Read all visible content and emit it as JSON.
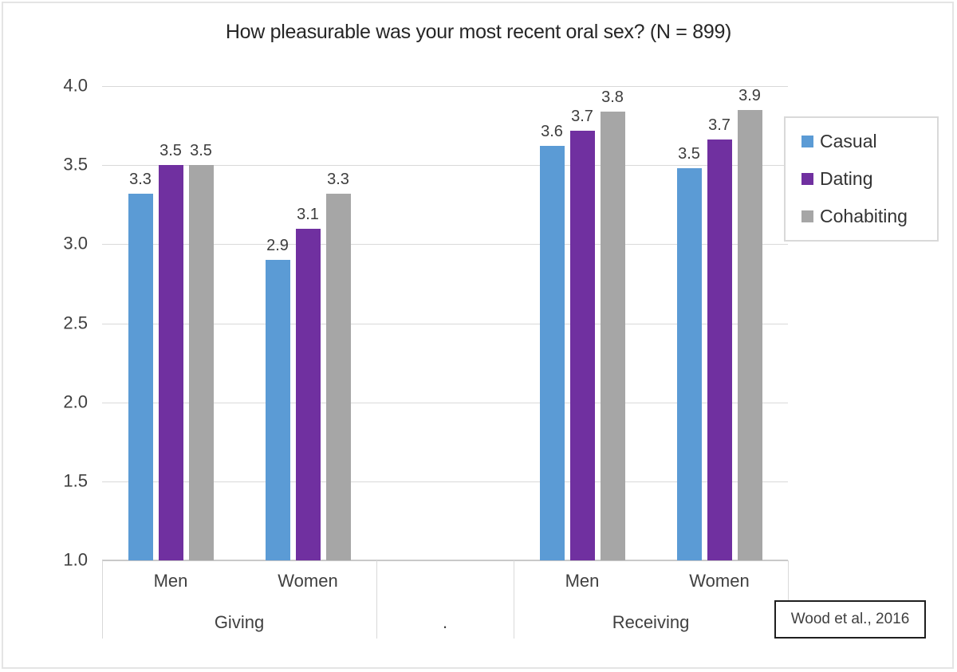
{
  "chart_data": {
    "type": "bar",
    "title": "How pleasurable was your most recent oral sex? (N = 899)",
    "xlabel": "",
    "ylabel": "",
    "ylim": [
      1.0,
      4.0
    ],
    "ytick_step": 0.5,
    "grid": true,
    "legend_position": "right",
    "slot_categories": [
      "Men",
      "Women",
      "",
      "Men",
      "Women"
    ],
    "axis_groups": [
      {
        "label": "Giving",
        "slots": [
          0,
          1
        ]
      },
      {
        "label": ".",
        "slots": [
          2
        ]
      },
      {
        "label": "Receiving",
        "slots": [
          3,
          4
        ]
      }
    ],
    "series": [
      {
        "name": "Casual",
        "color": "#5B9BD5",
        "values": [
          3.3,
          2.9,
          null,
          3.6,
          3.5
        ],
        "values_precise": [
          3.32,
          2.9,
          null,
          3.62,
          3.48
        ]
      },
      {
        "name": "Dating",
        "color": "#7030A0",
        "values": [
          3.5,
          3.1,
          null,
          3.7,
          3.7
        ],
        "values_precise": [
          3.5,
          3.1,
          null,
          3.72,
          3.66
        ]
      },
      {
        "name": "Cohabiting",
        "color": "#A6A6A6",
        "values": [
          3.5,
          3.3,
          null,
          3.8,
          3.9
        ],
        "values_precise": [
          3.5,
          3.32,
          null,
          3.84,
          3.85
        ]
      }
    ],
    "annotation": "Wood et al., 2016"
  },
  "colors": {
    "gridline": "#D9D9D9",
    "axis_line": "#C9C9C9",
    "text": "#404040",
    "title_text": "#262626",
    "legend_border": "#D9D9D9",
    "annotation_border": "#1F1F1F",
    "chart_border": "#E4E4E4",
    "background": "#FFFFFF"
  }
}
